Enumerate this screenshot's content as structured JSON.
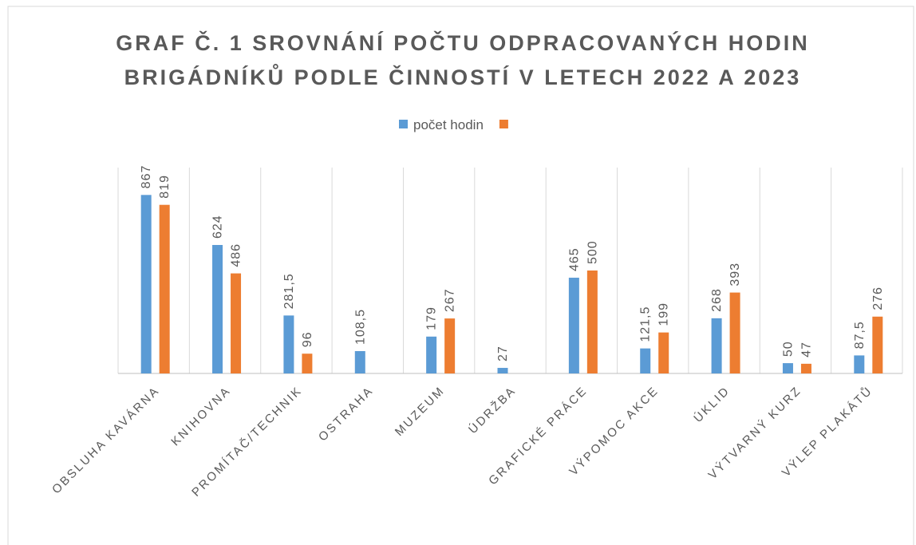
{
  "chart_data": {
    "type": "bar",
    "title": [
      "GRAF Č. 1 SROVNÁNÍ POČTU ODPRACOVANÝCH HODIN",
      "BRIGÁDNÍKŮ PODLE ČINNOSTÍ V LETECH 2022 A 2023"
    ],
    "categories": [
      "OBSLUHA KAVÁRNA",
      "KNIHOVNA",
      "PROMÍTAČ/TECHNIK",
      "OSTRAHA",
      "MUZEUM",
      "ÚDRŽBA",
      "GRAFICKÉ PRÁCE",
      "VÝPOMOC AKCE",
      "ÚKLID",
      "VÝTVARNÝ KURZ",
      "VÝLEP PLAKÁTŮ"
    ],
    "series": [
      {
        "name": "počet hodin",
        "color": "#5b9bd5",
        "values": [
          867,
          624,
          281.5,
          108.5,
          179,
          27,
          465,
          121.5,
          268,
          50,
          87.5
        ],
        "value_labels": [
          "867",
          "624",
          "281,5",
          "108,5",
          "179",
          "27",
          "465",
          "121,5",
          "268",
          "50",
          "87,5"
        ]
      },
      {
        "color": "#ed7d31",
        "values": [
          819,
          486,
          96,
          null,
          267,
          null,
          500,
          199,
          393,
          47,
          276
        ]
      }
    ],
    "ylim": [
      0,
      1000
    ],
    "grid": true,
    "legend": "top"
  }
}
